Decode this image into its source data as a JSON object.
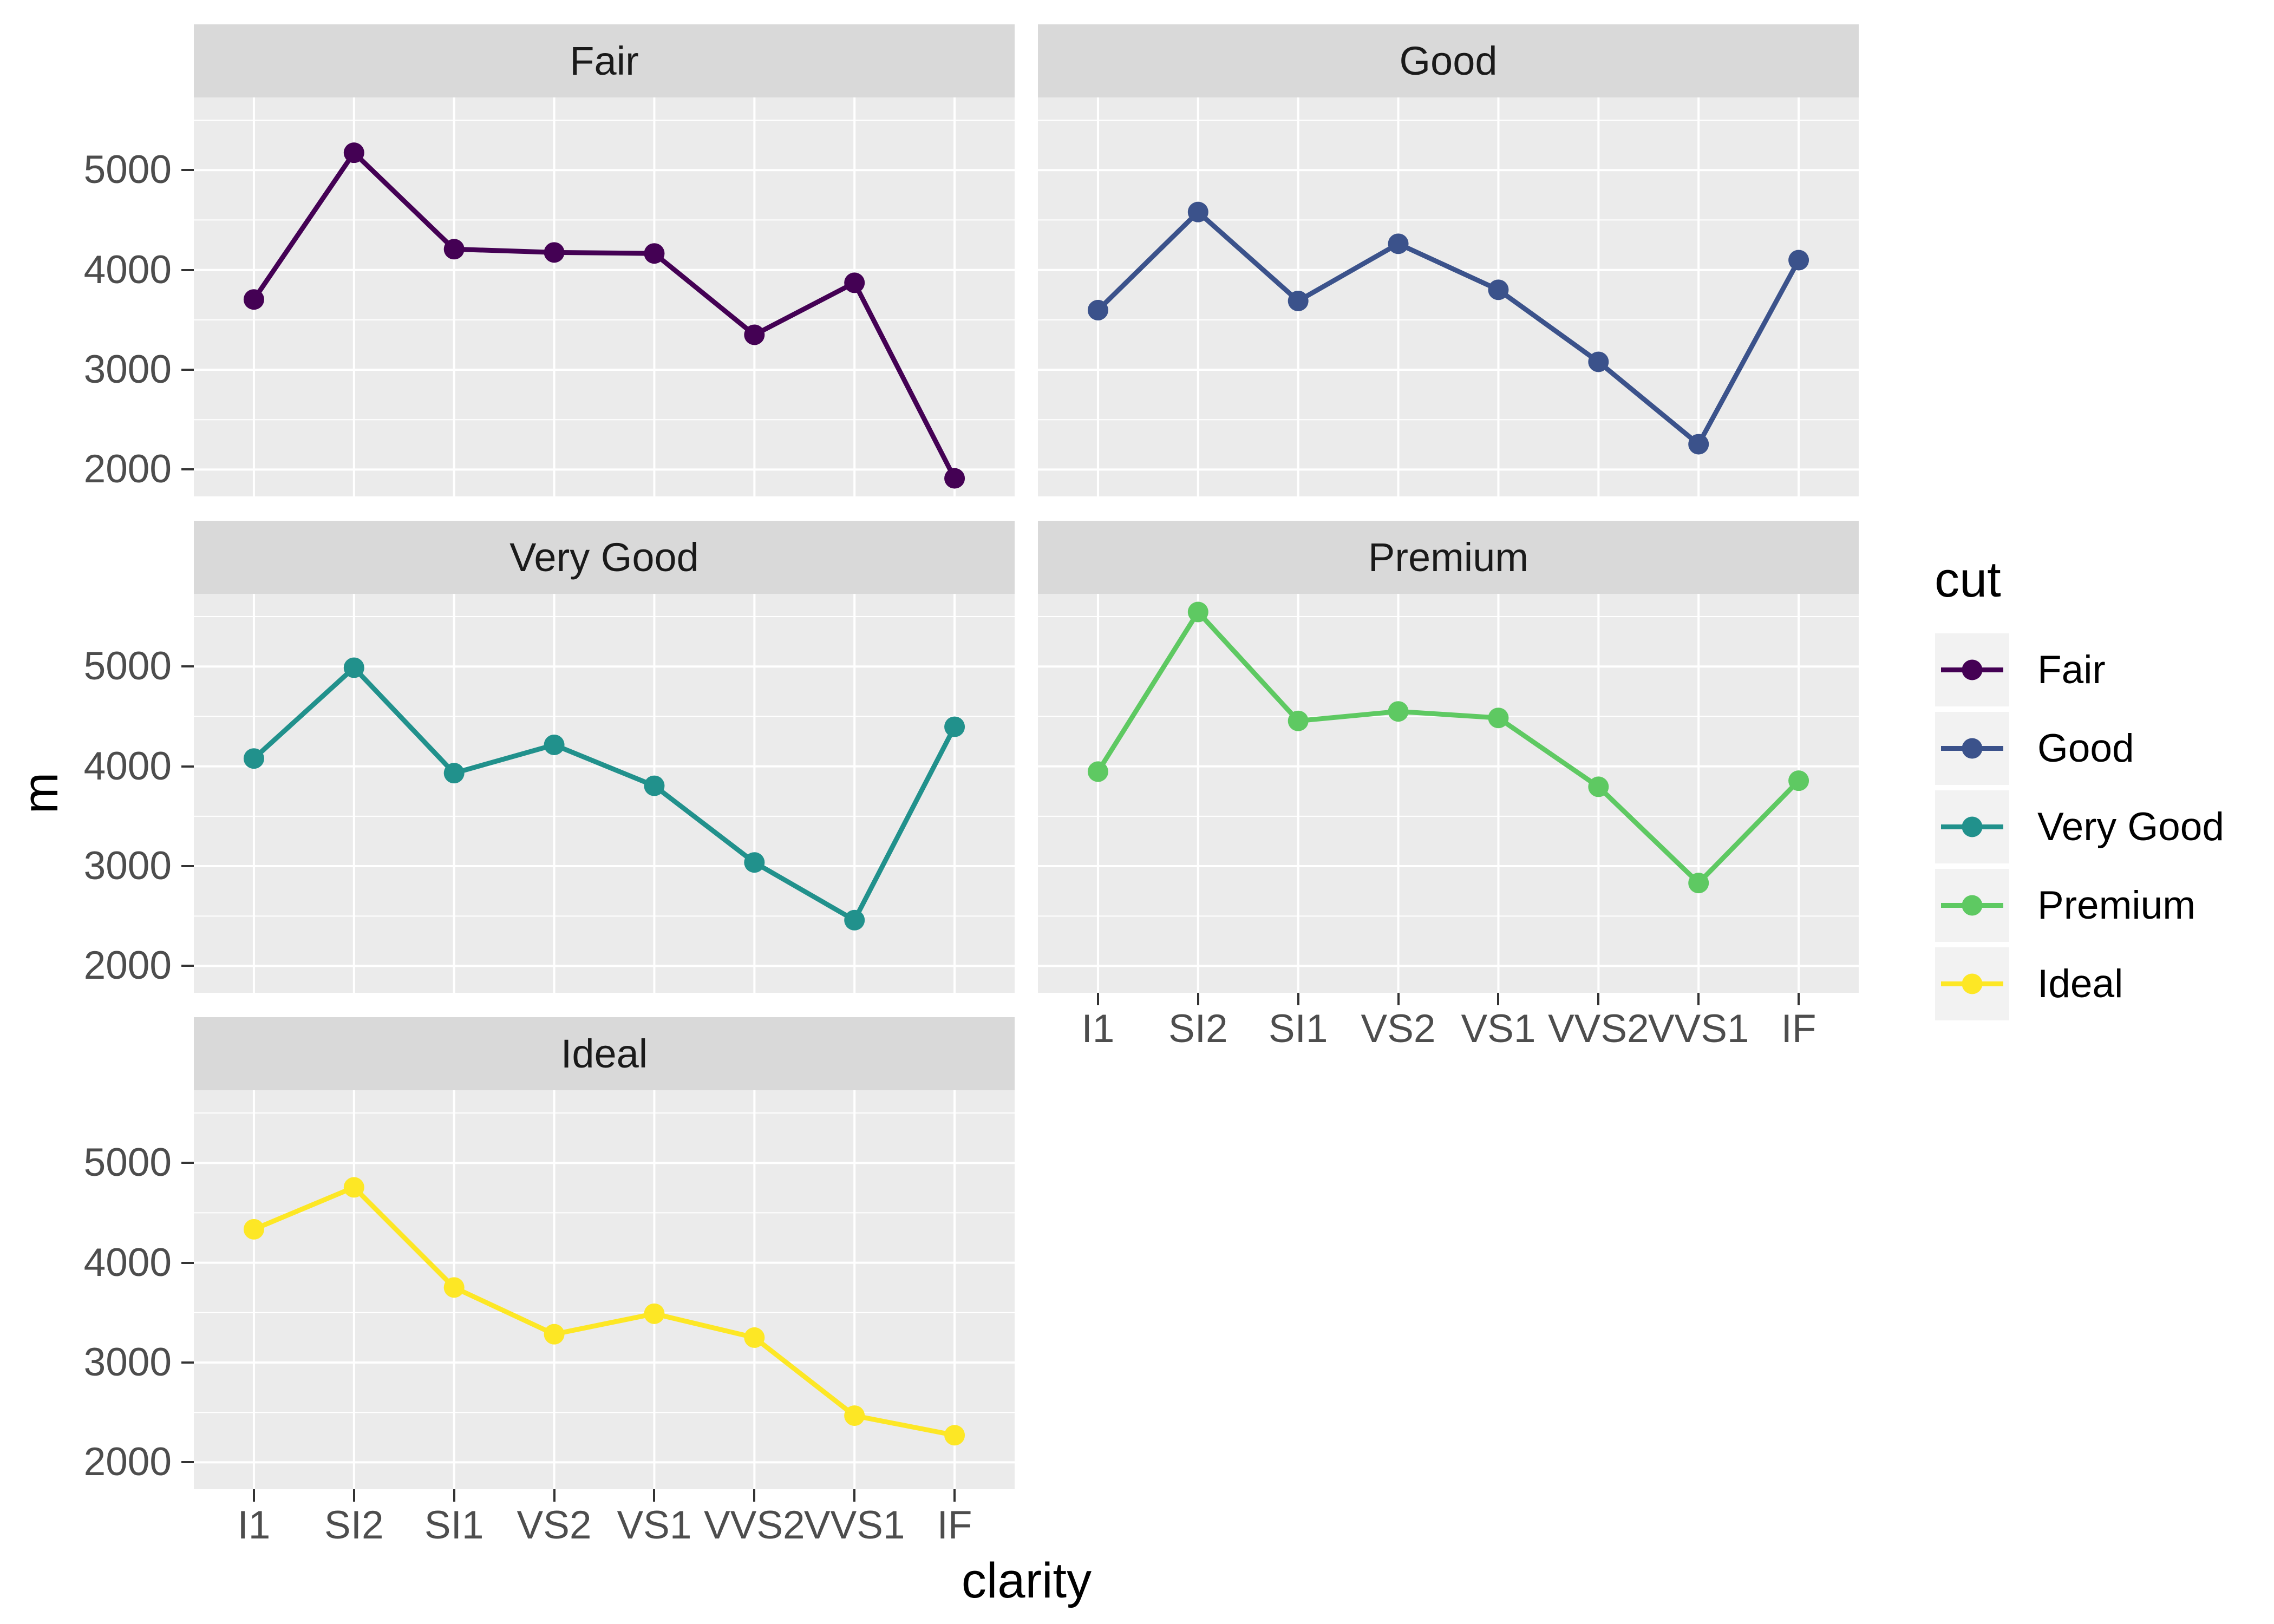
{
  "figure": {
    "ylabel": "m",
    "xlabel": "clarity",
    "legend_title": "cut"
  },
  "chart_data": {
    "type": "line",
    "facet_field": "cut",
    "xlabel": "clarity",
    "ylabel": "m",
    "legend_title": "cut",
    "legend_position": "right",
    "grid": true,
    "x_categories": [
      "I1",
      "SI2",
      "SI1",
      "VS2",
      "VS1",
      "VVS2",
      "VVS1",
      "IF"
    ],
    "y_breaks": [
      2000,
      3000,
      4000,
      5000
    ],
    "y_minor_breaks": [
      2500,
      3500,
      4500,
      5500
    ],
    "ylim": [
      1731,
      5728
    ],
    "facet_layout": [
      [
        "Fair",
        "Good"
      ],
      [
        "Very Good",
        "Premium"
      ],
      [
        "Ideal",
        null
      ]
    ],
    "series": [
      {
        "name": "Fair",
        "color": "#440154",
        "values": [
          3704,
          5174,
          4208,
          4175,
          4165,
          3350,
          3871,
          1912
        ]
      },
      {
        "name": "Good",
        "color": "#3B528B",
        "values": [
          3597,
          4580,
          3689,
          4262,
          3801,
          3079,
          2254,
          4098
        ]
      },
      {
        "name": "Very Good",
        "color": "#21918C",
        "values": [
          4078,
          4988,
          3932,
          4215,
          3805,
          3037,
          2459,
          4396
        ]
      },
      {
        "name": "Premium",
        "color": "#5EC962",
        "values": [
          3947,
          5546,
          4455,
          4550,
          4485,
          3795,
          2831,
          3856
        ]
      },
      {
        "name": "Ideal",
        "color": "#FDE725",
        "values": [
          4335,
          4755,
          3752,
          3284,
          3489,
          3250,
          2468,
          2272
        ]
      }
    ]
  },
  "theme": {
    "background": "#FFFFFF",
    "panel_bg": "#EBEBEB",
    "strip_bg": "#D9D9D9",
    "grid_color": "#FFFFFF",
    "tick_color": "#333333",
    "axis_text_color": "#4D4D4D",
    "strip_text_color": "#1A1A1A",
    "title_color": "#000000",
    "legend_key_bg": "#F2F2F2"
  }
}
